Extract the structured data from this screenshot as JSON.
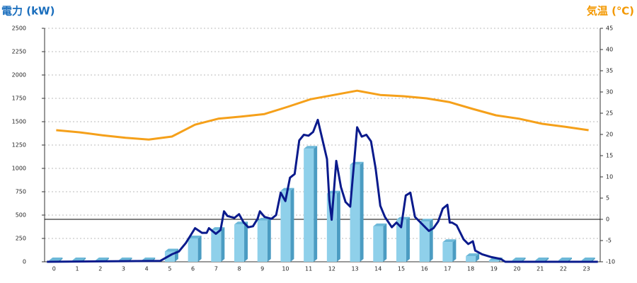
{
  "chart_data": {
    "type": "combo",
    "title_left": "電力 (kW)",
    "title_right": "気温 (℃)",
    "categories": [
      "0",
      "1",
      "2",
      "3",
      "4",
      "5",
      "6",
      "7",
      "8",
      "9",
      "10",
      "11",
      "12",
      "13",
      "14",
      "15",
      "16",
      "17",
      "18",
      "19",
      "20",
      "21",
      "22",
      "23"
    ],
    "ylim": [
      0,
      2500
    ],
    "yticks": [
      0,
      250,
      500,
      750,
      1000,
      1250,
      1500,
      1750,
      2000,
      2250,
      2500
    ],
    "y2lim": [
      -10,
      45
    ],
    "y2ticks": [
      -10,
      -5,
      0,
      5,
      10,
      15,
      20,
      25,
      30,
      35,
      40,
      45
    ],
    "grid": true,
    "y2_reference_line": 0,
    "series": [
      {
        "type": "bar",
        "color": "#8fd0ea",
        "values": [
          15,
          15,
          15,
          15,
          15,
          110,
          250,
          340,
          400,
          440,
          760,
          1210,
          730,
          1040,
          380,
          450,
          430,
          210,
          60,
          15,
          15,
          15,
          15,
          15
        ]
      },
      {
        "type": "line",
        "axis": "y2",
        "color": "#f5a01a",
        "values": [
          21,
          20.5,
          19.8,
          19.2,
          18.8,
          19.5,
          22.3,
          23.7,
          24.2,
          24.8,
          26.5,
          28.3,
          29.3,
          30.3,
          29.3,
          29,
          28.5,
          27.6,
          26,
          24.5,
          23.7,
          22.5,
          21.8,
          21
        ]
      },
      {
        "type": "line",
        "color": "#0a1a8c",
        "x": [
          -0.4,
          4.5,
          5,
          5.3,
          5.6,
          5.8,
          6,
          6.3,
          6.5,
          6.6,
          6.9,
          7.1,
          7.25,
          7.4,
          7.7,
          7.9,
          8.1,
          8.3,
          8.5,
          8.7,
          8.8,
          9,
          9.3,
          9.5,
          9.7,
          9.9,
          10.1,
          10.3,
          10.5,
          10.7,
          10.9,
          11.1,
          11.3,
          11.5,
          11.7,
          11.8,
          11.9,
          12.1,
          12.3,
          12.5,
          12.7,
          12.9,
          13,
          13.2,
          13.4,
          13.6,
          13.8,
          14,
          14.2,
          14.5,
          14.7,
          14.9,
          15.1,
          15.3,
          15.5,
          15.7,
          15.9,
          16.1,
          16.3,
          16.5,
          16.7,
          16.9,
          17,
          17.1,
          17.3,
          17.6,
          17.8,
          18,
          18.1,
          18.4,
          18.8,
          19.2,
          19.4,
          23.4
        ],
        "values": [
          0,
          10,
          80,
          110,
          200,
          280,
          360,
          310,
          310,
          360,
          300,
          340,
          540,
          490,
          470,
          510,
          420,
          370,
          380,
          460,
          540,
          480,
          460,
          500,
          740,
          650,
          900,
          940,
          1300,
          1360,
          1350,
          1390,
          1520,
          1310,
          1100,
          660,
          450,
          1080,
          800,
          640,
          590,
          1150,
          1440,
          1340,
          1360,
          1290,
          1000,
          600,
          480,
          370,
          420,
          370,
          710,
          740,
          480,
          430,
          380,
          330,
          360,
          430,
          570,
          610,
          420,
          420,
          390,
          240,
          190,
          220,
          120,
          80,
          50,
          30,
          0,
          0
        ]
      }
    ]
  }
}
